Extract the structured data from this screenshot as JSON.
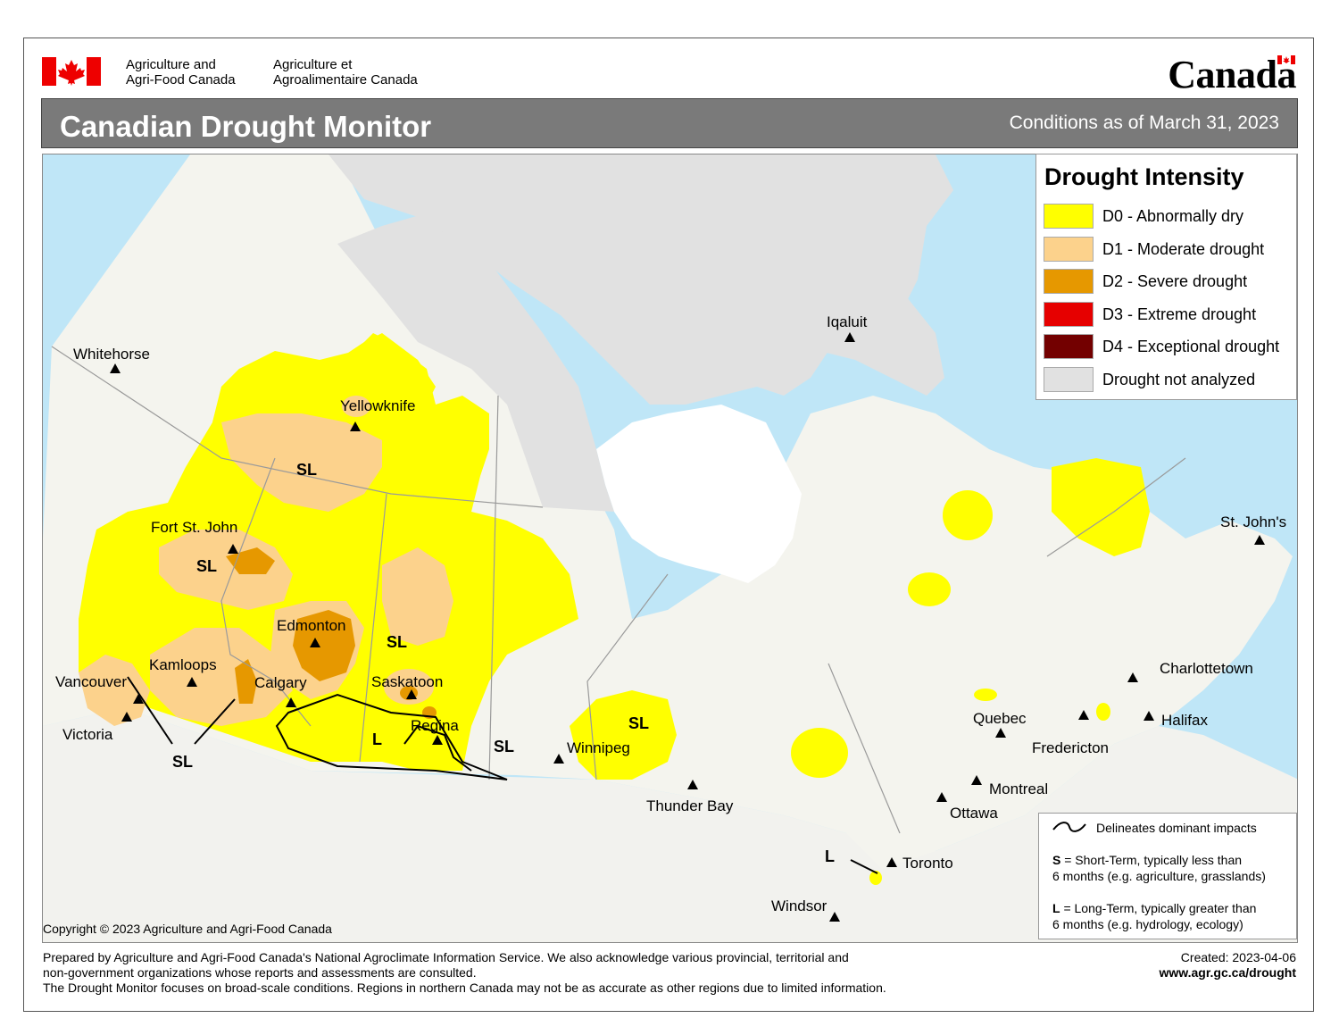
{
  "header": {
    "dept_en_line1": "Agriculture and",
    "dept_en_line2": "Agri-Food Canada",
    "dept_fr_line1": "Agriculture et",
    "dept_fr_line2": "Agroalimentaire Canada",
    "wordmark": "Canada",
    "title": "Canadian Drought Monitor",
    "as_of": "Conditions as of March 31, 2023"
  },
  "legend": {
    "title": "Drought Intensity",
    "items": [
      {
        "label": "D0 - Abnormally dry",
        "color": "#ffff00"
      },
      {
        "label": "D1 - Moderate drought",
        "color": "#fcd28c"
      },
      {
        "label": "D2 - Severe drought",
        "color": "#e69800"
      },
      {
        "label": "D3 - Extreme drought",
        "color": "#e60000"
      },
      {
        "label": "D4 - Exceptional drought",
        "color": "#730000"
      },
      {
        "label": "Drought not analyzed",
        "color": "#e1e1e1"
      }
    ]
  },
  "key": {
    "delineates": "Delineates dominant impacts",
    "s_letter": "S",
    "s_text_1": " = Short-Term, typically less than",
    "s_text_2": "6 months (e.g. agriculture, grasslands)",
    "l_letter": "L",
    "l_text_1": " = Long-Term, typically greater  than",
    "l_text_2": "6 months (e.g. hydrology, ecology)"
  },
  "cities": {
    "whitehorse": "Whitehorse",
    "yellowknife": "Yellowknife",
    "iqaluit": "Iqaluit",
    "fort_st_john": "Fort St. John",
    "edmonton": "Edmonton",
    "kamloops": "Kamloops",
    "vancouver": "Vancouver",
    "victoria": "Victoria",
    "calgary": "Calgary",
    "saskatoon": "Saskatoon",
    "regina": "Regina",
    "winnipeg": "Winnipeg",
    "thunder_bay": "Thunder Bay",
    "toronto": "Toronto",
    "windsor": "Windsor",
    "ottawa": "Ottawa",
    "montreal": "Montreal",
    "quebec": "Quebec",
    "fredericton": "Fredericton",
    "halifax": "Halifax",
    "charlottetown": "Charlottetown",
    "st_johns": "St. John's"
  },
  "impact_labels": {
    "sl": "SL",
    "l": "L"
  },
  "copyright": "Copyright © 2023 Agriculture and Agri-Food Canada",
  "footer": {
    "line1": "Prepared by Agriculture and Agri-Food Canada's National Agroclimate Information Service.  We also acknowledge various provincial, territorial and",
    "line2": "non-government organizations whose reports and assessments are consulted.",
    "line3": "The Drought Monitor focuses on broad-scale conditions.  Regions in northern Canada may not be as accurate as other regions due to limited information.",
    "created": "Created: 2023-04-06",
    "url": "www.agr.gc.ca/drought"
  }
}
